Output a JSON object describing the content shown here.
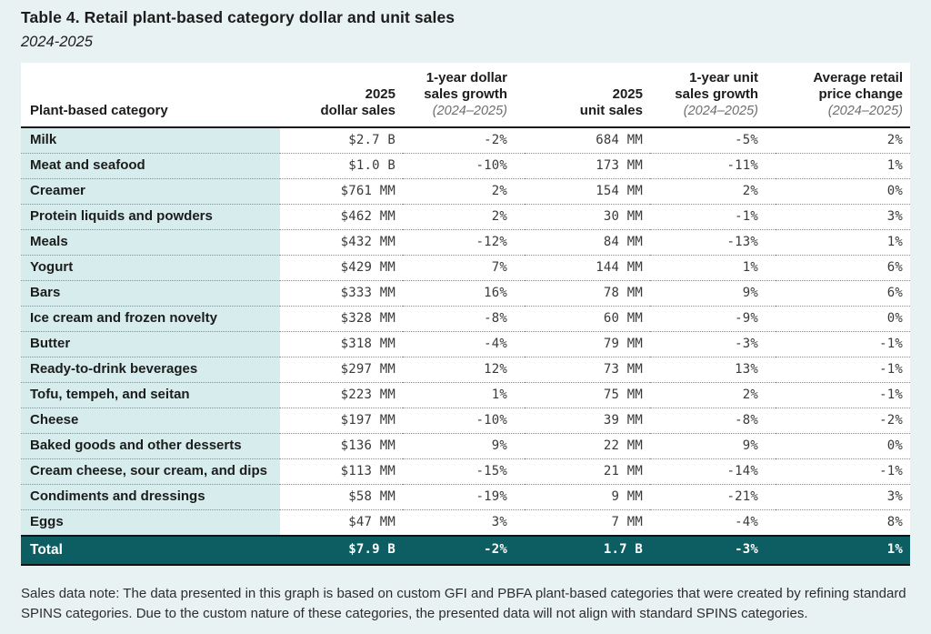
{
  "page": {
    "title": "Table 4. Retail plant-based category dollar and unit sales",
    "subtitle": "2024-2025",
    "footnote": "Sales data note: The data presented in this graph is based on custom GFI and PBFA plant-based categories that were created by refining standard SPINS categories. Due to the custom nature of these categories, the presented data will not align with standard SPINS categories."
  },
  "colors": {
    "page_bg": "#e9f2f2",
    "table_bg": "#ffffff",
    "category_col_bg": "#d7ecec",
    "total_row_bg": "#0d5e63",
    "total_row_text": "#ffffff",
    "header_sub_text": "#6e6e6e",
    "body_text": "#1c1c1c",
    "numeric_text": "#3a3a3a",
    "divider": "#1a1a1a"
  },
  "table": {
    "columns": [
      {
        "id": "category",
        "line1": "",
        "line2": "Plant-based category",
        "sub": "",
        "pad": false
      },
      {
        "id": "dollar-sales",
        "line1": "2025",
        "line2": "dollar sales",
        "sub": "",
        "pad": false
      },
      {
        "id": "dollar-growth",
        "line1": "1-year dollar",
        "line2": "sales growth",
        "sub": "(2024–2025)",
        "pad": true
      },
      {
        "id": "unit-sales",
        "line1": "2025",
        "line2": "unit sales",
        "sub": "",
        "pad": false
      },
      {
        "id": "unit-growth",
        "line1": "1-year unit",
        "line2": "sales growth",
        "sub": "(2024–2025)",
        "pad": true
      },
      {
        "id": "price-change",
        "line1": "Average retail",
        "line2": "price change",
        "sub": "(2024–2025)",
        "pad": false
      }
    ]
  },
  "chart_data": {
    "type": "table",
    "title": "Table 4. Retail plant-based category dollar and unit sales",
    "subtitle": "2024-2025",
    "columns": [
      "Plant-based category",
      "2025 dollar sales",
      "1-year dollar sales growth (2024–2025)",
      "2025 unit sales",
      "1-year unit sales growth (2024–2025)",
      "Average retail price change (2024–2025)"
    ],
    "rows": [
      [
        "Milk",
        "$2.7 B",
        "-2%",
        "684 MM",
        "-5%",
        "2%"
      ],
      [
        "Meat and seafood",
        "$1.0 B",
        "-10%",
        "173 MM",
        "-11%",
        "1%"
      ],
      [
        "Creamer",
        "$761 MM",
        "2%",
        "154 MM",
        "2%",
        "0%"
      ],
      [
        "Protein liquids and powders",
        "$462 MM",
        "2%",
        "30 MM",
        "-1%",
        "3%"
      ],
      [
        "Meals",
        "$432 MM",
        "-12%",
        "84 MM",
        "-13%",
        "1%"
      ],
      [
        "Yogurt",
        "$429 MM",
        "7%",
        "144 MM",
        "1%",
        "6%"
      ],
      [
        "Bars",
        "$333 MM",
        "16%",
        "78 MM",
        "9%",
        "6%"
      ],
      [
        "Ice cream and frozen novelty",
        "$328 MM",
        "-8%",
        "60 MM",
        "-9%",
        "0%"
      ],
      [
        "Butter",
        "$318 MM",
        "-4%",
        "79 MM",
        "-3%",
        "-1%"
      ],
      [
        "Ready-to-drink beverages",
        "$297 MM",
        "12%",
        "73 MM",
        "13%",
        "-1%"
      ],
      [
        "Tofu, tempeh, and seitan",
        "$223 MM",
        "1%",
        "75 MM",
        "2%",
        "-1%"
      ],
      [
        "Cheese",
        "$197 MM",
        "-10%",
        "39 MM",
        "-8%",
        "-2%"
      ],
      [
        "Baked goods and other desserts",
        "$136 MM",
        "9%",
        "22 MM",
        "9%",
        "0%"
      ],
      [
        "Cream cheese, sour cream, and dips",
        "$113 MM",
        "-15%",
        "21 MM",
        "-14%",
        "-1%"
      ],
      [
        "Condiments and dressings",
        "$58 MM",
        "-19%",
        "9 MM",
        "-21%",
        "3%"
      ],
      [
        "Eggs",
        "$47 MM",
        "3%",
        "7 MM",
        "-4%",
        "8%"
      ]
    ],
    "total_row": [
      "Total",
      "$7.9 B",
      "-2%",
      "1.7 B",
      "-3%",
      "1%"
    ]
  }
}
